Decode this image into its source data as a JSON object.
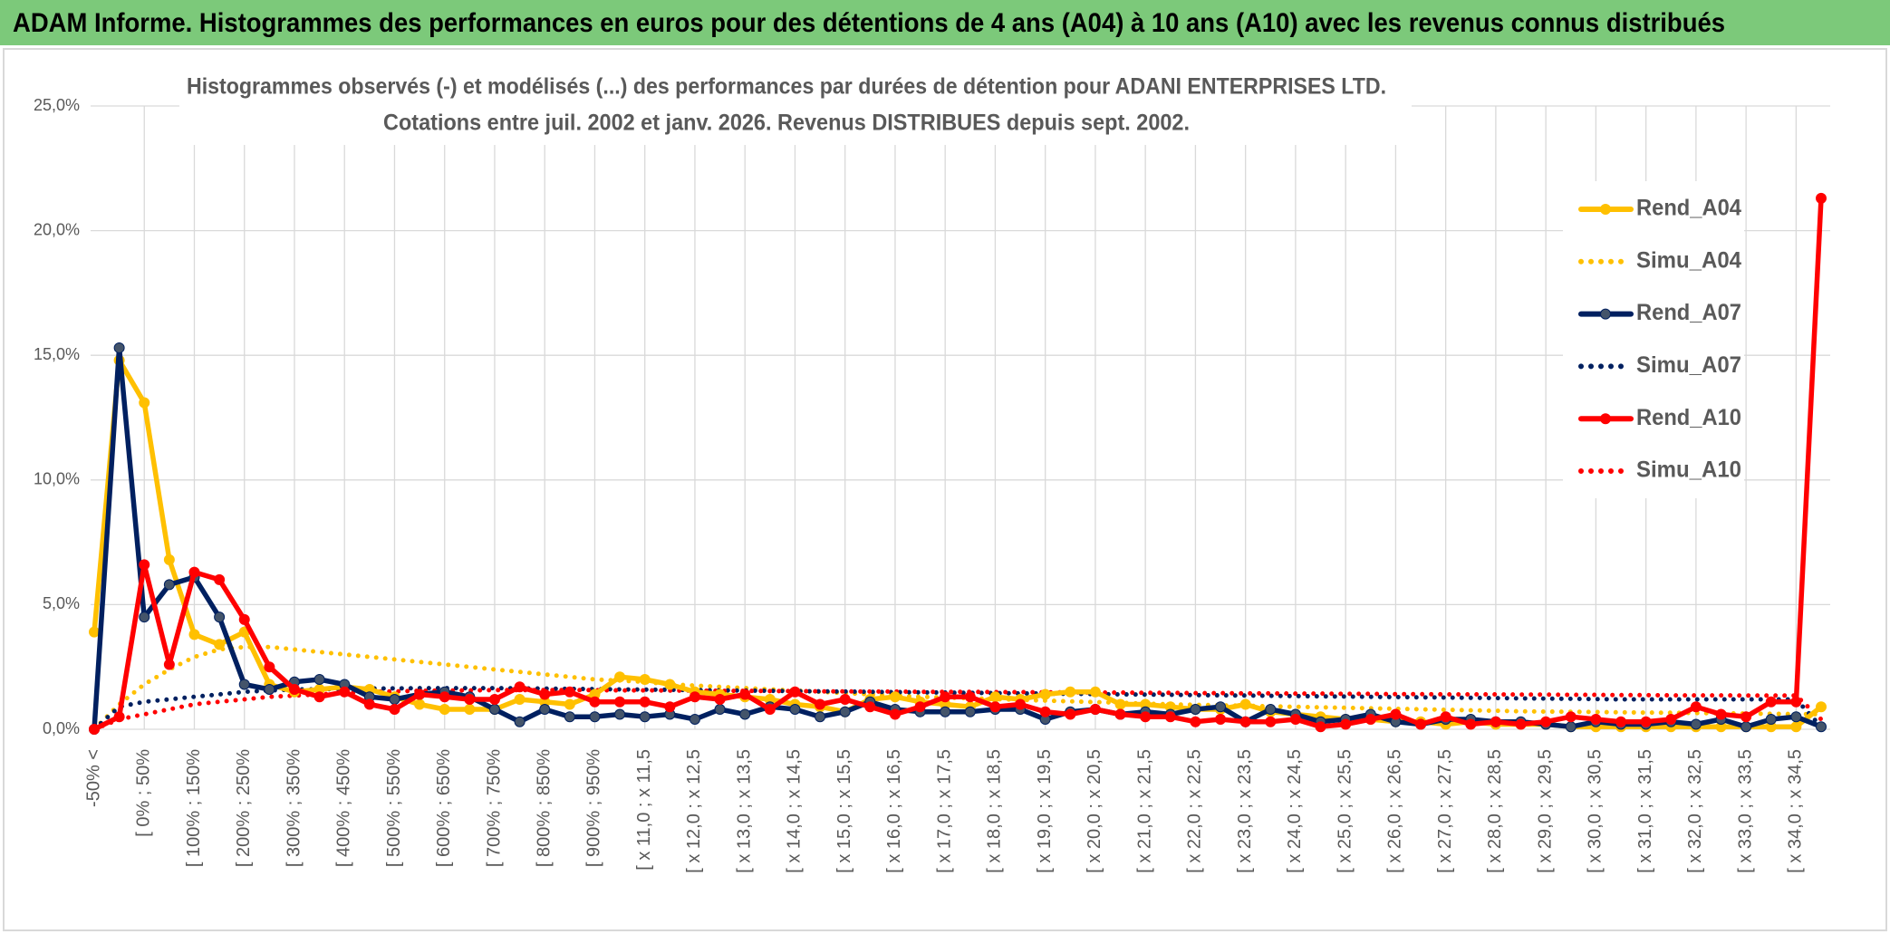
{
  "header": {
    "title": "ADAM Informe. Histogrammes des performances en euros pour des détentions de 4 ans (A04) à 10 ans (A10) avec les revenus connus distribués"
  },
  "chart_data": {
    "type": "line",
    "title": [
      "Histogrammes observés (-) et modélisés (...) des performances par durées de détention pour ADANI ENTERPRISES LTD.",
      "Cotations entre juil. 2002 et janv. 2026. Revenus DISTRIBUES depuis sept. 2002."
    ],
    "categories": [
      "-50% <",
      null,
      "[ 0% ; 50%",
      null,
      "[ 100% ; 150%",
      null,
      "[ 200% ; 250%",
      null,
      "[ 300% ; 350%",
      null,
      "[ 400% ; 450%",
      null,
      "[ 500% ; 550%",
      null,
      "[ 600% ; 650%",
      null,
      "[ 700% ; 750%",
      null,
      "[ 800% ; 850%",
      null,
      "[ 900% ; 950%",
      null,
      "[ x 11,0 ; x 11,5",
      null,
      "[ x 12,0 ; x 12,5",
      null,
      "[ x 13,0 ; x 13,5",
      null,
      "[ x 14,0 ; x 14,5",
      null,
      "[ x 15,0 ; x 15,5",
      null,
      "[ x 16,0 ; x 16,5",
      null,
      "[ x 17,0 ; x 17,5",
      null,
      "[ x 18,0 ; x 18,5",
      null,
      "[ x 19,0 ; x 19,5",
      null,
      "[ x 20,0 ; x 20,5",
      null,
      "[ x 21,0 ; x 21,5",
      null,
      "[ x 22,0 ; x 22,5",
      null,
      "[ x 23,0 ; x 23,5",
      null,
      "[ x 24,0 ; x 24,5",
      null,
      "[ x 25,0 ; x 25,5",
      null,
      "[ x 26,0 ; x 26,5",
      null,
      "[ x 27,0 ; x 27,5",
      null,
      "[ x 28,0 ; x 28,5",
      null,
      "[ x 29,0 ; x 29,5",
      null,
      "[ x 30,0 ; x 30,5",
      null,
      "[ x 31,0 ; x 31,5",
      null,
      "[ x 32,0 ; x 32,5",
      null,
      "[ x 33,0 ; x 33,5",
      null,
      "[ x 34,0 ; x 34,5",
      null
    ],
    "ylim": [
      0,
      25
    ],
    "yticks": [
      {
        "value": 0,
        "label": "0,0%"
      },
      {
        "value": 5,
        "label": "5,0%"
      },
      {
        "value": 10,
        "label": "10,0%"
      },
      {
        "value": 15,
        "label": "15,0%"
      },
      {
        "value": 20,
        "label": "20,0%"
      },
      {
        "value": 25,
        "label": "25,0%"
      }
    ],
    "grid": true,
    "legend": "right",
    "series": [
      {
        "name": "Rend_A04",
        "color": "#ffc000",
        "style": "solid",
        "markers": true,
        "values": [
          3.9,
          14.8,
          13.1,
          6.8,
          3.8,
          3.4,
          3.9,
          1.8,
          1.5,
          1.6,
          1.7,
          1.6,
          1.3,
          1.0,
          0.8,
          0.8,
          0.8,
          1.2,
          1.1,
          1.0,
          1.4,
          2.1,
          2.0,
          1.8,
          1.5,
          1.4,
          1.3,
          1.2,
          1.0,
          0.9,
          0.7,
          1.2,
          1.3,
          1.1,
          1.0,
          0.9,
          1.3,
          1.2,
          1.4,
          1.5,
          1.5,
          1.0,
          1.0,
          0.9,
          0.8,
          0.8,
          1.0,
          0.7,
          0.6,
          0.5,
          0.4,
          0.4,
          0.3,
          0.3,
          0.2,
          0.3,
          0.2,
          0.2,
          0.2,
          0.1,
          0.1,
          0.1,
          0.1,
          0.1,
          0.1,
          0.1,
          0.1,
          0.1,
          0.1,
          0.9
        ]
      },
      {
        "name": "Simu_A04",
        "color": "#ffc000",
        "style": "dotted",
        "markers": false,
        "values": [
          0.0,
          1.0,
          1.8,
          2.4,
          2.9,
          3.2,
          3.3,
          3.3,
          3.2,
          3.1,
          3.0,
          2.9,
          2.8,
          2.7,
          2.6,
          2.5,
          2.4,
          2.3,
          2.2,
          2.1,
          2.0,
          1.95,
          1.9,
          1.8,
          1.75,
          1.7,
          1.65,
          1.6,
          1.55,
          1.5,
          1.45,
          1.4,
          1.35,
          1.3,
          1.27,
          1.24,
          1.21,
          1.18,
          1.15,
          1.12,
          1.09,
          1.06,
          1.03,
          1.0,
          0.98,
          0.96,
          0.94,
          0.92,
          0.9,
          0.88,
          0.86,
          0.84,
          0.82,
          0.8,
          0.78,
          0.76,
          0.74,
          0.72,
          0.71,
          0.7,
          0.69,
          0.68,
          0.67,
          0.66,
          0.65,
          0.64,
          0.63,
          0.62,
          0.61,
          0.6
        ]
      },
      {
        "name": "Rend_A07",
        "color": "#002060",
        "style": "solid",
        "markers": true,
        "values": [
          0.0,
          15.3,
          4.5,
          5.8,
          6.1,
          4.5,
          1.8,
          1.6,
          1.9,
          2.0,
          1.8,
          1.3,
          1.2,
          1.4,
          1.5,
          1.3,
          0.8,
          0.3,
          0.8,
          0.5,
          0.5,
          0.6,
          0.5,
          0.6,
          0.4,
          0.8,
          0.6,
          0.9,
          0.8,
          0.5,
          0.7,
          1.1,
          0.8,
          0.7,
          0.7,
          0.7,
          0.8,
          0.8,
          0.4,
          0.7,
          0.8,
          0.6,
          0.7,
          0.6,
          0.8,
          0.9,
          0.3,
          0.8,
          0.6,
          0.3,
          0.4,
          0.6,
          0.3,
          0.2,
          0.4,
          0.4,
          0.3,
          0.3,
          0.2,
          0.1,
          0.3,
          0.2,
          0.2,
          0.3,
          0.2,
          0.4,
          0.1,
          0.4,
          0.5,
          0.1
        ]
      },
      {
        "name": "Simu_A07",
        "color": "#002060",
        "style": "dotted",
        "markers": false,
        "values": [
          0.0,
          0.9,
          1.1,
          1.2,
          1.3,
          1.4,
          1.5,
          1.55,
          1.6,
          1.6,
          1.62,
          1.63,
          1.64,
          1.65,
          1.65,
          1.65,
          1.65,
          1.64,
          1.63,
          1.62,
          1.61,
          1.6,
          1.59,
          1.58,
          1.57,
          1.56,
          1.55,
          1.54,
          1.53,
          1.52,
          1.51,
          1.5,
          1.49,
          1.48,
          1.47,
          1.46,
          1.45,
          1.44,
          1.43,
          1.42,
          1.41,
          1.4,
          1.39,
          1.38,
          1.37,
          1.36,
          1.35,
          1.34,
          1.33,
          1.32,
          1.31,
          1.3,
          1.29,
          1.28,
          1.27,
          1.26,
          1.25,
          1.24,
          1.23,
          1.22,
          1.21,
          1.2,
          1.2,
          1.2,
          1.2,
          1.2,
          1.2,
          1.2,
          1.2,
          0.1
        ]
      },
      {
        "name": "Rend_A10",
        "color": "#ff0000",
        "style": "solid",
        "markers": true,
        "values": [
          0.0,
          0.5,
          6.6,
          2.6,
          6.3,
          6.0,
          4.4,
          2.5,
          1.6,
          1.3,
          1.5,
          1.0,
          0.8,
          1.4,
          1.3,
          1.2,
          1.2,
          1.7,
          1.4,
          1.5,
          1.1,
          1.1,
          1.1,
          0.9,
          1.3,
          1.2,
          1.4,
          0.8,
          1.5,
          1.0,
          1.2,
          0.9,
          0.6,
          0.9,
          1.3,
          1.3,
          0.9,
          1.0,
          0.7,
          0.6,
          0.8,
          0.6,
          0.5,
          0.5,
          0.3,
          0.4,
          0.3,
          0.3,
          0.4,
          0.1,
          0.2,
          0.4,
          0.6,
          0.2,
          0.5,
          0.2,
          0.3,
          0.2,
          0.3,
          0.5,
          0.4,
          0.3,
          0.3,
          0.4,
          0.9,
          0.6,
          0.5,
          1.1,
          1.1,
          21.3
        ]
      },
      {
        "name": "Simu_A10",
        "color": "#ff0000",
        "style": "dotted",
        "markers": false,
        "values": [
          0.0,
          0.4,
          0.6,
          0.8,
          1.0,
          1.1,
          1.2,
          1.3,
          1.35,
          1.4,
          1.45,
          1.5,
          1.52,
          1.54,
          1.55,
          1.56,
          1.57,
          1.57,
          1.57,
          1.57,
          1.57,
          1.56,
          1.56,
          1.55,
          1.55,
          1.54,
          1.54,
          1.53,
          1.53,
          1.52,
          1.52,
          1.51,
          1.51,
          1.5,
          1.5,
          1.5,
          1.49,
          1.49,
          1.48,
          1.48,
          1.47,
          1.47,
          1.46,
          1.46,
          1.45,
          1.45,
          1.44,
          1.44,
          1.43,
          1.43,
          1.42,
          1.42,
          1.41,
          1.41,
          1.4,
          1.4,
          1.4,
          1.39,
          1.39,
          1.38,
          1.38,
          1.37,
          1.37,
          1.36,
          1.36,
          1.36,
          1.35,
          1.35,
          1.35,
          0.4
        ]
      }
    ]
  }
}
